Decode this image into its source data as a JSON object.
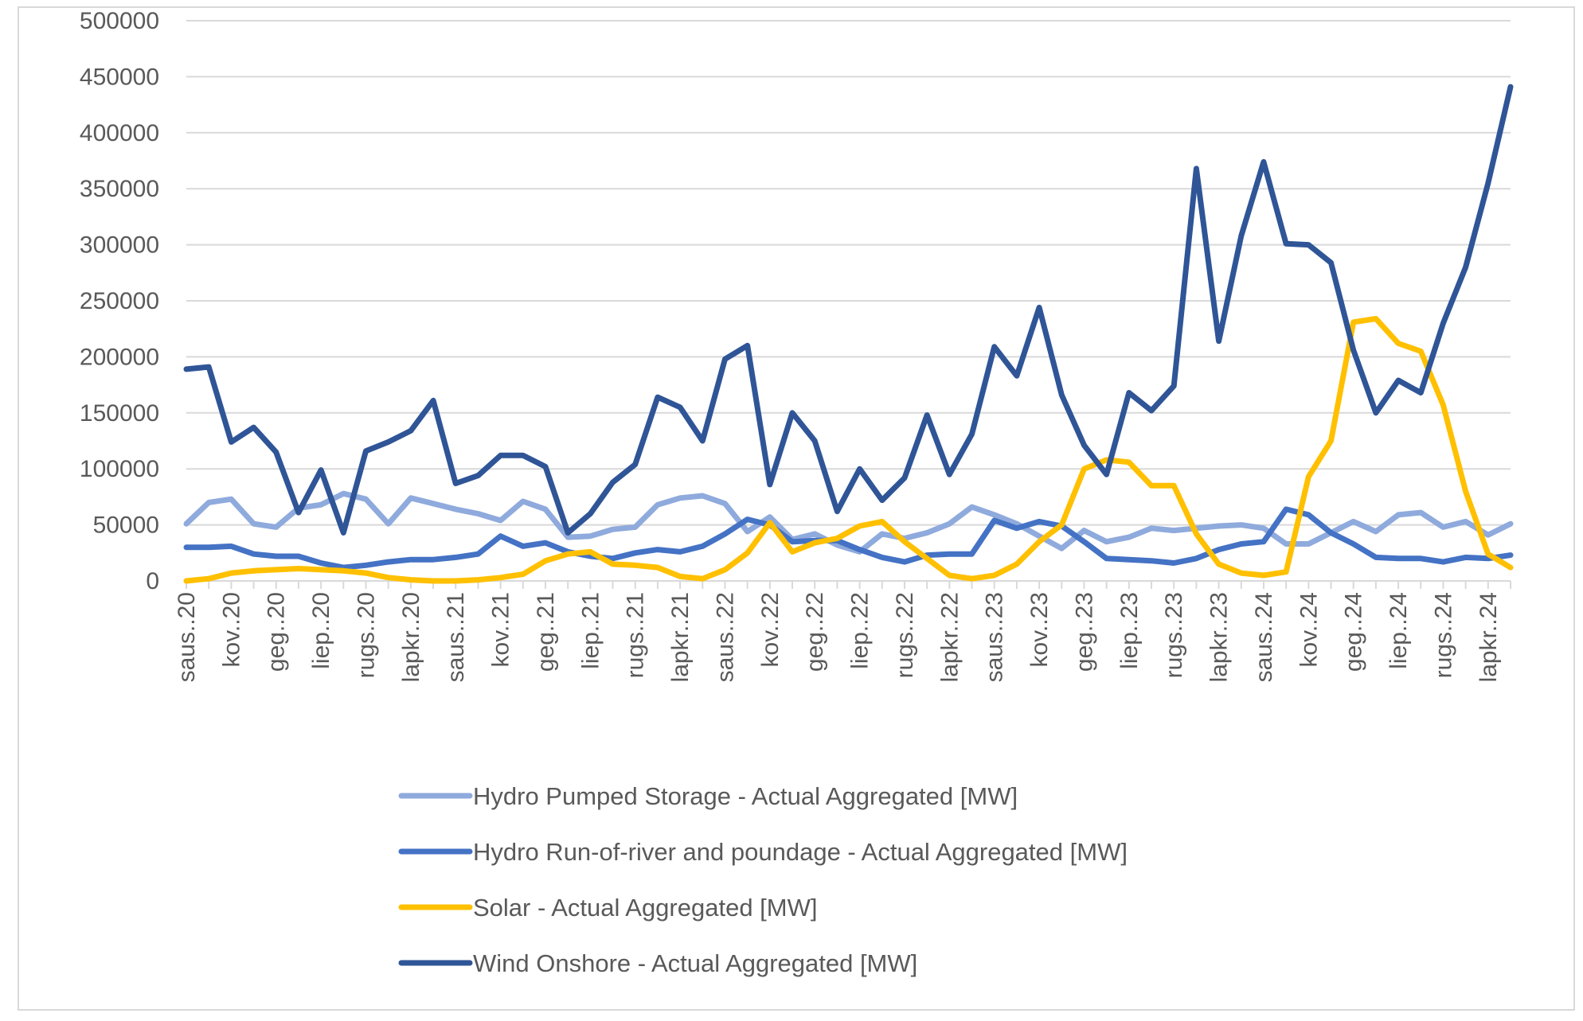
{
  "chart_data": {
    "type": "line",
    "ylim": [
      0,
      500000
    ],
    "y_ticks": [
      "500000",
      "450000",
      "400000",
      "350000",
      "300000",
      "250000",
      "200000",
      "150000",
      "100000",
      "50000",
      "0"
    ],
    "x_tick_labels": [
      "saus..20",
      "kov..20",
      "geg..20",
      "liep..20",
      "rugs..20",
      "lapkr..20",
      "saus..21",
      "kov..21",
      "geg..21",
      "liep..21",
      "rugs..21",
      "lapkr..21",
      "saus..22",
      "kov..22",
      "geg..22",
      "liep..22",
      "rugs..22",
      "lapkr..22",
      "saus..23",
      "kov..23",
      "geg..23",
      "liep..23",
      "rugs..23",
      "lapkr..23",
      "saus..24",
      "kov..24",
      "geg..24",
      "liep..24",
      "rugs..24",
      "lapkr..24"
    ],
    "grid": true,
    "legend_position": "bottom",
    "series": [
      {
        "name": "Hydro Pumped Storage - Actual Aggregated [MW]",
        "color": "#8faadc",
        "values": [
          51000,
          70000,
          73000,
          51000,
          48000,
          65000,
          68000,
          78000,
          73000,
          51000,
          74000,
          69000,
          64000,
          60000,
          54000,
          71000,
          64000,
          39000,
          40000,
          46000,
          48000,
          68000,
          74000,
          76000,
          69000,
          44000,
          57000,
          37000,
          42000,
          32000,
          26000,
          42000,
          38000,
          43000,
          51000,
          66000,
          59000,
          51000,
          40000,
          29000,
          45000,
          35000,
          39000,
          47000,
          45000,
          47000,
          49000,
          50000,
          47000,
          33000,
          33000,
          43000,
          53000,
          44000,
          59000,
          61000,
          48000,
          53000,
          41000,
          51000
        ]
      },
      {
        "name": "Hydro Run-of-river and poundage - Actual Aggregated [MW]",
        "color": "#4472c4",
        "values": [
          30000,
          30000,
          31000,
          24000,
          22000,
          22000,
          16000,
          12000,
          14000,
          17000,
          19000,
          19000,
          21000,
          24000,
          40000,
          31000,
          34000,
          26000,
          22000,
          20000,
          25000,
          28000,
          26000,
          31000,
          42000,
          55000,
          50000,
          35000,
          36000,
          36000,
          28000,
          21000,
          17000,
          23000,
          24000,
          24000,
          54000,
          47000,
          53000,
          49000,
          35000,
          20000,
          19000,
          18000,
          16000,
          20000,
          28000,
          33000,
          35000,
          64000,
          59000,
          43000,
          33000,
          21000,
          20000,
          20000,
          17000,
          21000,
          20000,
          23000
        ]
      },
      {
        "name": "Solar - Actual Aggregated [MW]",
        "color": "#ffc000",
        "values": [
          0,
          2000,
          7000,
          9000,
          10000,
          11000,
          10000,
          9000,
          7000,
          3000,
          1000,
          0,
          0,
          1000,
          3000,
          6000,
          18000,
          24000,
          26000,
          15000,
          14000,
          12000,
          4000,
          2000,
          10000,
          25000,
          52000,
          26000,
          34000,
          38000,
          49000,
          53000,
          35000,
          20000,
          5000,
          2000,
          5000,
          15000,
          35000,
          50000,
          100000,
          108000,
          106000,
          85000,
          85000,
          42000,
          15000,
          7000,
          5000,
          8000,
          93000,
          125000,
          231000,
          234000,
          212000,
          205000,
          157000,
          80000,
          24000,
          12000
        ]
      },
      {
        "name": "Wind Onshore - Actual Aggregated [MW]",
        "color": "#2f5597",
        "values": [
          189000,
          191000,
          124000,
          137000,
          115000,
          61000,
          99000,
          43000,
          116000,
          124000,
          134000,
          161000,
          87000,
          94000,
          112000,
          112000,
          102000,
          43000,
          60000,
          88000,
          104000,
          164000,
          155000,
          125000,
          198000,
          210000,
          86000,
          150000,
          125000,
          62000,
          100000,
          72000,
          92000,
          148000,
          95000,
          131000,
          209000,
          183000,
          244000,
          166000,
          121000,
          95000,
          168000,
          152000,
          174000,
          368000,
          214000,
          308000,
          374000,
          301000,
          300000,
          284000,
          206000,
          150000,
          179000,
          168000,
          230000,
          280000,
          355000,
          441000
        ]
      }
    ]
  }
}
